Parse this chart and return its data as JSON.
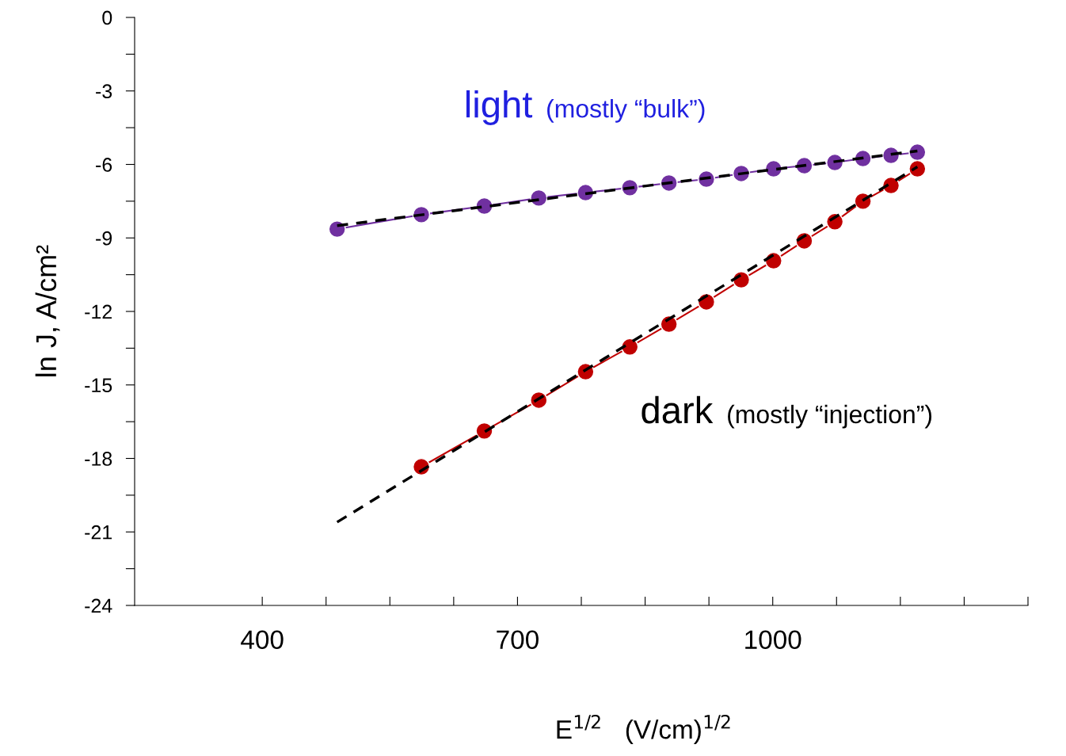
{
  "chart_data": {
    "type": "line",
    "xlabel": "E$^{1/2}$   (V/cm)$^{1/2}$",
    "ylabel": "ln J, A/cm²",
    "xlim": [
      250,
      1300
    ],
    "xticks": [
      400,
      {
        "value": 475,
        "label": null
      },
      {
        "value": 550,
        "label": null
      },
      {
        "value": 625,
        "label": null
      },
      700,
      {
        "value": 775,
        "label": null
      },
      {
        "value": 850,
        "label": null
      },
      {
        "value": 925,
        "label": null
      },
      1000,
      {
        "value": 1075,
        "label": null
      },
      {
        "value": 1150,
        "label": null
      },
      {
        "value": 1225,
        "label": null
      },
      {
        "value": 1300,
        "label": null
      }
    ],
    "ylim": [
      -24,
      0
    ],
    "yticks": [
      0,
      {
        "value": -1.5,
        "label": null
      },
      -3,
      {
        "value": -4.5,
        "label": null
      },
      -6,
      {
        "value": -7.5,
        "label": null
      },
      -9,
      {
        "value": -10.5,
        "label": null
      },
      -12,
      {
        "value": -13.5,
        "label": null
      },
      -15,
      {
        "value": -16.5,
        "label": null
      },
      -18,
      {
        "value": -19.5,
        "label": null
      },
      -21,
      {
        "value": -22.5,
        "label": null
      },
      -24
    ],
    "grid": false,
    "marker": "circle",
    "line_style": "solid",
    "annotations": [
      "(mostly “bulk”)",
      "(mostly “injection”)"
    ],
    "series": [
      {
        "name": "light",
        "color": "#7030a0",
        "x": [
          488,
          587,
          661,
          725,
          780,
          832,
          878,
          922,
          963,
          1001,
          1037,
          1073,
          1106,
          1139,
          1170
        ],
        "values": [
          -8.64,
          -8.05,
          -7.7,
          -7.37,
          -7.15,
          -6.95,
          -6.76,
          -6.6,
          -6.37,
          -6.18,
          -6.05,
          -5.92,
          -5.76,
          -5.63,
          -5.5
        ]
      },
      {
        "name": "dark",
        "color": "#c00000",
        "x": [
          587,
          661,
          725,
          780,
          832,
          878,
          922,
          963,
          1001,
          1037,
          1073,
          1106,
          1139,
          1170
        ],
        "values": [
          -18.34,
          -16.88,
          -15.62,
          -14.46,
          -13.45,
          -12.52,
          -11.61,
          -10.71,
          -9.93,
          -9.12,
          -8.34,
          -7.5,
          -6.86,
          -6.18
        ]
      },
      {
        "type": "line",
        "color": "#000000",
        "line_style": "dashed",
        "marker": "none",
        "x": [
          488,
          1170
        ],
        "values": [
          -8.5,
          -5.45
        ]
      },
      {
        "type": "line",
        "color": "#000000",
        "line_style": "dashed",
        "marker": "none",
        "x": [
          488,
          1170
        ],
        "values": [
          -20.6,
          -6.1
        ]
      }
    ]
  }
}
